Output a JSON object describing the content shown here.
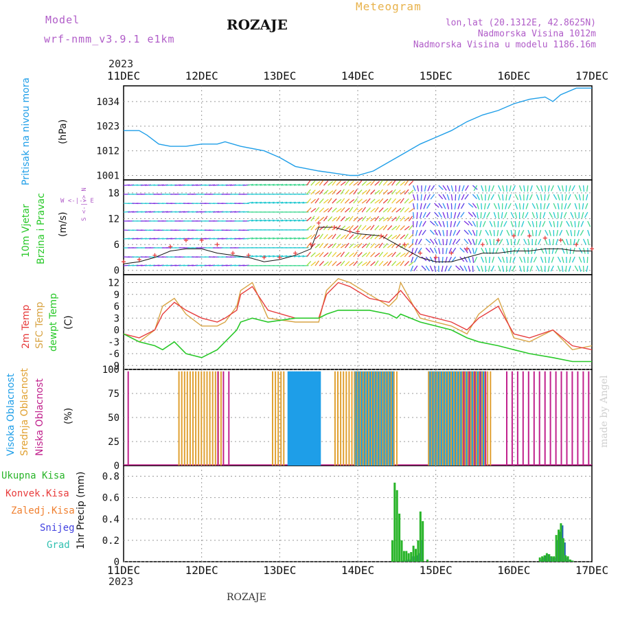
{
  "header": {
    "model_label": "Model",
    "model_name": "wrf-nmm_v3.9.1 e1km",
    "title": "ROZAJE",
    "meteogram_label": "Meteogram",
    "lonlat": "lon,lat (20.1312E, 42.8625N)",
    "elevation": "Nadmorska Visina 1012m",
    "model_elevation": "Nadmorska Visina u modelu 1186.16m",
    "year_top": "2023",
    "year_bottom": "2023",
    "bottom_title": "ROZAJE",
    "credit": "made by Angel"
  },
  "colors": {
    "pressure": "#1e9ee8",
    "temp2m": "#e63c3c",
    "sfc": "#d8a444",
    "dewpt": "#28c828",
    "high_cloud": "#1e9ee8",
    "mid_cloud": "#e0a030",
    "low_cloud": "#c0208c",
    "total_precip": "#28b428",
    "conv_precip": "#e83c3c",
    "frozen": "#f08030",
    "snow": "#4040e0",
    "grad": "#30c0b0"
  },
  "panel_labels": {
    "pressure_name": "Pritisak na nivou mora",
    "pressure_unit": "(hPa)",
    "wind_name_1": "10m Vjetar",
    "wind_name_2": "Brzina i Pravac",
    "wind_unit": "(m/s)",
    "compass": "W <-|-> E",
    "compass_v": "S <-|-> N",
    "temp_2m": "2m Temp",
    "temp_sfc": "SFC Temp",
    "temp_dew": "dewpt Temp",
    "temp_unit": "(C)",
    "cloud_high": "Visoka Oblacnost",
    "cloud_mid": "Srednja Oblacnost",
    "cloud_low": "Niska Oblacnost",
    "cloud_unit": "(%)",
    "precip_total": "Ukupna Kisa",
    "precip_conv": "Konvek.Kisa",
    "precip_frozen": "Zaledj.Kisa",
    "precip_snow": "Snijeg",
    "precip_grad": "Grad",
    "precip_unit": "1hr Precip (mm)"
  },
  "chart_data": [
    {
      "type": "line",
      "name": "pressure",
      "x_ticks": [
        "11DEC",
        "12DEC",
        "13DEC",
        "14DEC",
        "15DEC",
        "16DEC",
        "17DEC"
      ],
      "xlim": [
        0,
        6
      ],
      "ylim": [
        999,
        1041
      ],
      "y_ticks": [
        1001,
        1012,
        1023,
        1034
      ],
      "x": [
        0,
        0.2,
        0.3,
        0.45,
        0.6,
        0.8,
        1.0,
        1.2,
        1.3,
        1.5,
        1.8,
        2.0,
        2.2,
        2.5,
        2.7,
        2.9,
        3.0,
        3.2,
        3.4,
        3.6,
        3.8,
        4.0,
        4.2,
        4.4,
        4.6,
        4.8,
        5.0,
        5.2,
        5.4,
        5.5,
        5.6,
        5.8,
        6.0
      ],
      "series": [
        {
          "values": [
            1021,
            1021,
            1019,
            1015,
            1014,
            1014,
            1015,
            1015,
            1016,
            1014,
            1012,
            1009,
            1005,
            1003,
            1002,
            1001,
            1001,
            1003,
            1007,
            1011,
            1015,
            1018,
            1021,
            1025,
            1028,
            1030,
            1033,
            1035,
            1036,
            1034,
            1037,
            1040,
            1040
          ]
        }
      ]
    },
    {
      "type": "line",
      "name": "wind_speed",
      "xlim": [
        0,
        6
      ],
      "ylim": [
        -1,
        21
      ],
      "y_ticks": [
        0,
        6,
        12,
        18
      ],
      "x": [
        0,
        0.2,
        0.4,
        0.6,
        0.8,
        1.0,
        1.2,
        1.4,
        1.6,
        1.8,
        2.0,
        2.2,
        2.4,
        2.5,
        2.7,
        2.9,
        3.0,
        3.3,
        3.6,
        3.8,
        4.0,
        4.2,
        4.4,
        4.6,
        4.8,
        5.0,
        5.2,
        5.4,
        5.6,
        5.8,
        6.0
      ],
      "series": [
        {
          "values": [
            1.5,
            2,
            3,
            4.5,
            5,
            5,
            4,
            3.5,
            3,
            2,
            2.5,
            3.5,
            5,
            10,
            10,
            9,
            8.5,
            8,
            5,
            3,
            2,
            2,
            3,
            4,
            4,
            4.5,
            4.5,
            5,
            5,
            4.5,
            4.5
          ]
        },
        {
          "values": [
            2,
            2.5,
            3.5,
            5.5,
            7,
            7,
            6,
            4,
            3.5,
            3,
            3,
            4,
            6,
            11,
            10,
            9,
            9,
            8,
            6,
            4,
            3,
            4,
            5,
            6,
            7,
            8,
            8,
            7.5,
            7,
            6,
            5
          ]
        }
      ]
    },
    {
      "type": "line",
      "name": "temperature",
      "xlim": [
        0,
        6
      ],
      "ylim": [
        -10,
        14
      ],
      "y_ticks": [
        -9,
        -6,
        -3,
        0,
        3,
        6,
        9,
        12
      ],
      "x": [
        0,
        0.2,
        0.4,
        0.5,
        0.65,
        0.8,
        1.0,
        1.2,
        1.3,
        1.45,
        1.5,
        1.65,
        1.85,
        2.2,
        2.5,
        2.6,
        2.75,
        2.9,
        3.15,
        3.4,
        3.5,
        3.55,
        3.8,
        4.2,
        4.4,
        4.55,
        4.8,
        5.0,
        5.2,
        5.5,
        5.75,
        6.0
      ],
      "series": [
        {
          "name": "2m Temp",
          "values": [
            -1,
            -2,
            0,
            4,
            7,
            5,
            3,
            2,
            3,
            5,
            9,
            11,
            5,
            3,
            3,
            9,
            12,
            11,
            8,
            7,
            9,
            10,
            4,
            2,
            0,
            3,
            6,
            -1,
            -2,
            0,
            -4,
            -5
          ]
        },
        {
          "name": "SFC Temp",
          "values": [
            -1,
            -3,
            0,
            6,
            8,
            4,
            1,
            1,
            2,
            6,
            10,
            12,
            3,
            2,
            2,
            10,
            13,
            12,
            9,
            6,
            8,
            12,
            3,
            1,
            -1,
            4,
            8,
            -2,
            -3,
            0,
            -5,
            -4
          ]
        },
        {
          "name": "dewpt Temp",
          "values": [
            -1,
            -3,
            -4,
            -5,
            -3,
            -6,
            -7,
            -5,
            -3,
            0,
            2,
            3,
            2,
            3,
            3,
            4,
            5,
            5,
            5,
            4,
            3,
            4,
            2,
            0,
            -2,
            -3,
            -4,
            -5,
            -6,
            -7,
            -8,
            -8
          ]
        }
      ]
    },
    {
      "type": "bar",
      "name": "cloud_cover",
      "xlim": [
        0,
        6
      ],
      "ylim": [
        0,
        100
      ],
      "y_ticks": [
        0,
        25,
        50,
        75,
        100
      ],
      "series": [
        {
          "name": "Visoka Oblacnost",
          "x_ranges": [
            [
              2.1,
              2.5
            ],
            [
              2.95,
              3.45
            ],
            [
              3.9,
              4.6
            ]
          ],
          "value": 100
        },
        {
          "name": "Srednja Oblacnost",
          "x_ranges": [
            [
              0.7,
              1.25
            ],
            [
              1.9,
              2.05
            ],
            [
              2.7,
              3.5
            ],
            [
              3.9,
              4.7
            ]
          ],
          "value": 100
        },
        {
          "name": "Niska Oblacnost",
          "x_ranges": [
            [
              0.05,
              0.08
            ],
            [
              1.2,
              1.4
            ],
            [
              4.35,
              4.7
            ],
            [
              4.9,
              6.0
            ]
          ],
          "value": 100
        }
      ]
    },
    {
      "type": "bar",
      "name": "precipitation",
      "xlim": [
        0,
        6
      ],
      "ylim": [
        0,
        0.9
      ],
      "y_ticks": [
        0,
        0.2,
        0.4,
        0.6,
        0.8
      ],
      "x": [
        3.43,
        3.46,
        3.49,
        3.52,
        3.55,
        3.58,
        3.61,
        3.64,
        3.67,
        3.7,
        3.73,
        3.76,
        3.79,
        3.82,
        3.85,
        3.88,
        3.91,
        5.32,
        5.35,
        5.38,
        5.41,
        5.44,
        5.47,
        5.5,
        5.53,
        5.56,
        5.59,
        5.62,
        5.65,
        5.68,
        5.71,
        5.74
      ],
      "series": [
        {
          "name": "Ukupna Kisa",
          "values": [
            0.2,
            0.74,
            0.67,
            0.45,
            0.2,
            0.1,
            0.1,
            0.08,
            0.09,
            0.15,
            0.12,
            0.2,
            0.47,
            0.38,
            0.0,
            0.02,
            0.0,
            0.04,
            0.05,
            0.06,
            0.08,
            0.07,
            0.05,
            0.05,
            0.25,
            0.3,
            0.36,
            0.22,
            0.06,
            0.05,
            0.02,
            0.01
          ]
        },
        {
          "name": "Snijeg",
          "values": [
            0,
            0,
            0,
            0,
            0.01,
            0.01,
            0.02,
            0.02,
            0.05,
            0.05,
            0.06,
            0.08,
            0.2,
            0,
            0,
            0,
            0,
            0.02,
            0.04,
            0.06,
            0.07,
            0.05,
            0.04,
            0.04,
            0.2,
            0.28,
            0.34,
            0.18,
            0.04,
            0.02,
            0.01,
            0
          ]
        }
      ]
    }
  ]
}
